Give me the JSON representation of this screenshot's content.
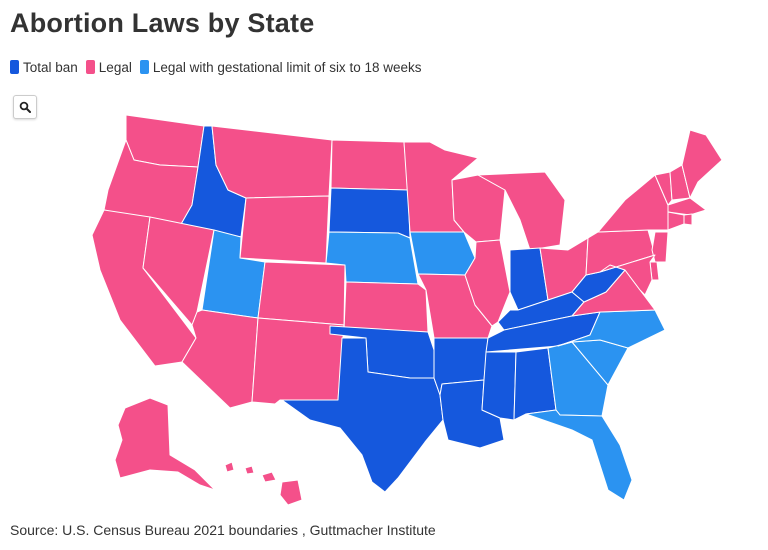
{
  "title": "Abortion Laws by State",
  "legend": [
    {
      "label": "Total ban",
      "color": "#1558dd"
    },
    {
      "label": "Legal",
      "color": "#f4508a"
    },
    {
      "label": "Legal with gestational limit of six to 18 weeks",
      "color": "#2b93f1"
    }
  ],
  "source": "Source: U.S. Census Bureau 2021 boundaries , Guttmacher Institute",
  "attribution": "",
  "map": {
    "colors": {
      "ban": "#1558dd",
      "legal": "#f4508a",
      "limit": "#2b93f1"
    },
    "states": {
      "WA": "legal",
      "OR": "legal",
      "CA": "legal",
      "ID": "ban",
      "NV": "legal",
      "UT": "limit",
      "AZ": "legal",
      "MT": "legal",
      "WY": "legal",
      "CO": "legal",
      "NM": "legal",
      "ND": "legal",
      "SD": "ban",
      "NE": "limit",
      "KS": "legal",
      "OK": "ban",
      "TX": "ban",
      "MN": "legal",
      "IA": "limit",
      "MO": "legal",
      "AR": "ban",
      "LA": "ban",
      "WI": "legal",
      "IL": "legal",
      "MI": "legal",
      "IN": "ban",
      "OH": "legal",
      "KY": "ban",
      "TN": "ban",
      "MS": "ban",
      "AL": "ban",
      "GA": "limit",
      "FL": "limit",
      "SC": "limit",
      "NC": "limit",
      "VA": "legal",
      "WV": "ban",
      "PA": "legal",
      "NY": "legal",
      "VT": "legal",
      "NH": "legal",
      "ME": "legal",
      "MA": "legal",
      "RI": "legal",
      "CT": "legal",
      "NJ": "legal",
      "DE": "legal",
      "MD": "legal",
      "AK": "legal",
      "HI": "legal"
    }
  }
}
